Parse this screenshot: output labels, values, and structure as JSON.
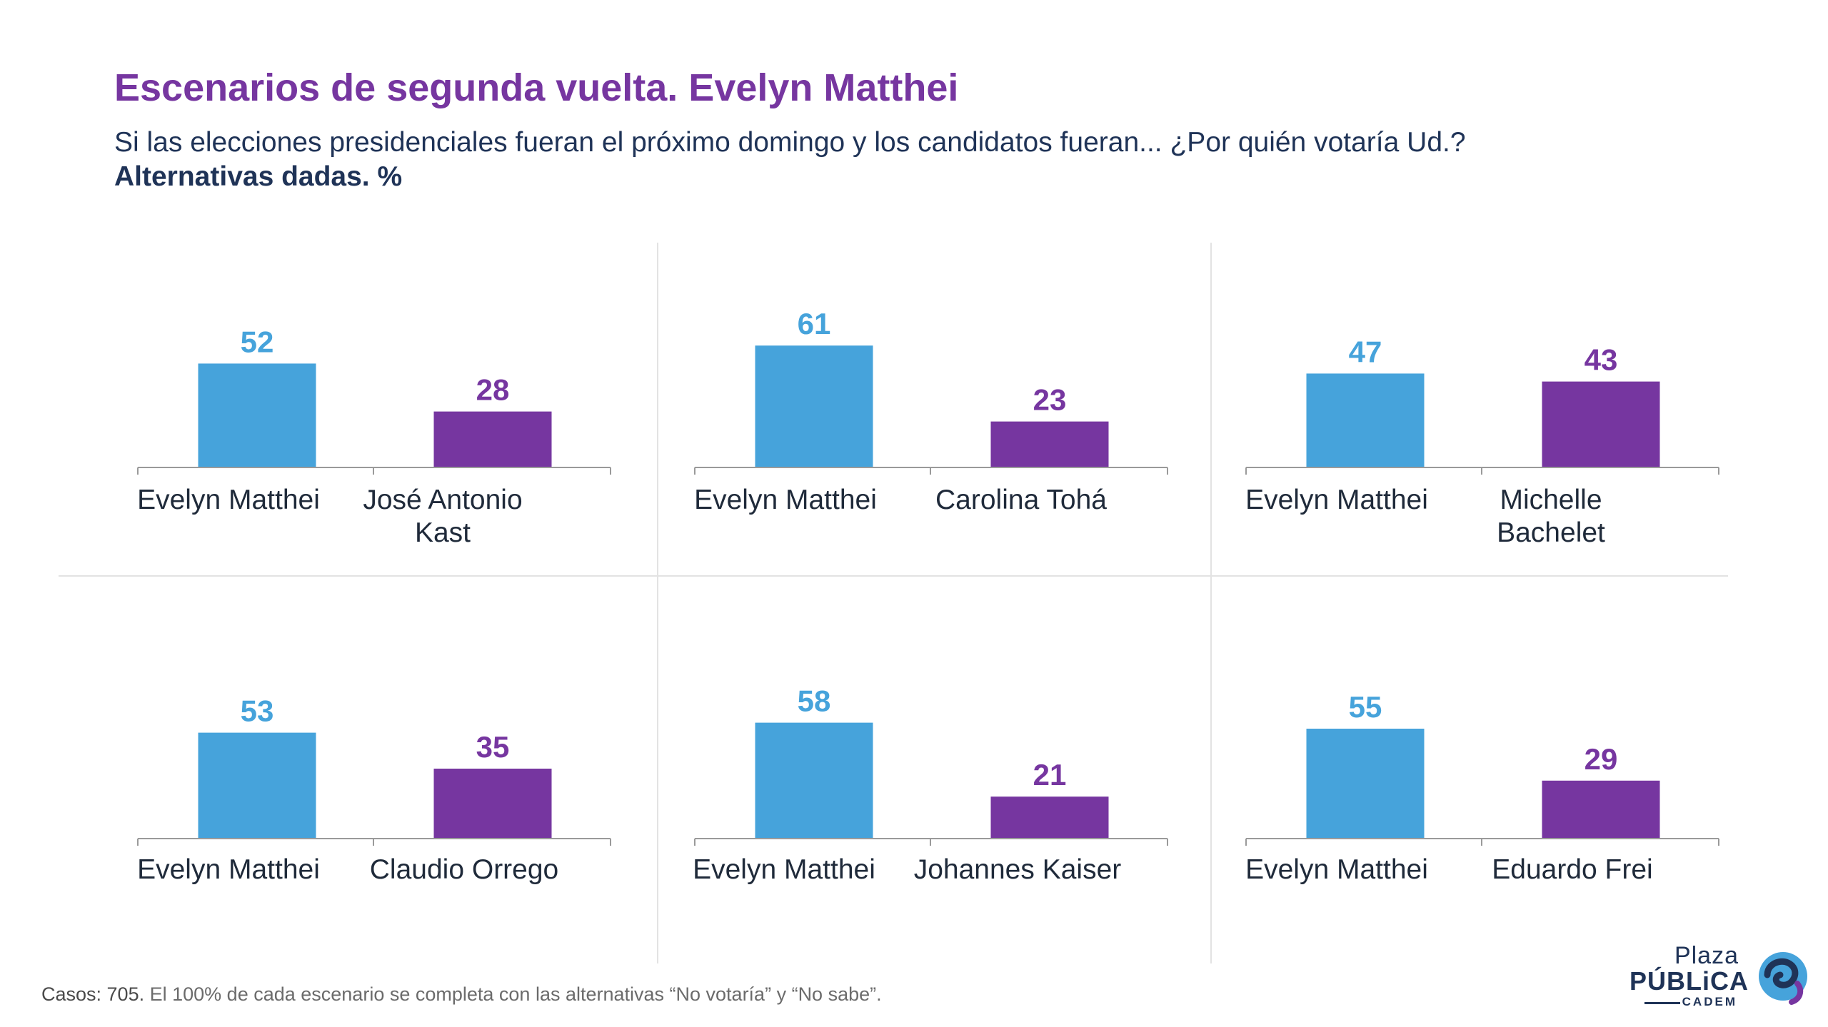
{
  "header": {
    "title": "Escenarios de segunda vuelta. Evelyn Matthei",
    "subtitle": "Si las elecciones presidenciales fueran el próximo domingo y los candidatos fueran... ¿Por quién votaría Ud.?",
    "subtitle_bold": "Alternativas dadas. %"
  },
  "colors": {
    "matthei": "#46a3db",
    "opponent": "#7636a0",
    "title": "#7636a0",
    "text": "#1f3357"
  },
  "chart_data": [
    {
      "type": "bar",
      "categories": [
        "Evelyn Matthei",
        "José Antonio Kast"
      ],
      "values": [
        52,
        28
      ]
    },
    {
      "type": "bar",
      "categories": [
        "Evelyn Matthei",
        "Carolina Tohá"
      ],
      "values": [
        61,
        23
      ]
    },
    {
      "type": "bar",
      "categories": [
        "Evelyn Matthei",
        "Michelle Bachelet"
      ],
      "values": [
        47,
        43
      ]
    },
    {
      "type": "bar",
      "categories": [
        "Evelyn Matthei",
        "Claudio Orrego"
      ],
      "values": [
        53,
        35
      ]
    },
    {
      "type": "bar",
      "categories": [
        "Evelyn Matthei",
        "Johannes Kaiser"
      ],
      "values": [
        58,
        21
      ]
    },
    {
      "type": "bar",
      "categories": [
        "Evelyn Matthei",
        "Eduardo Frei"
      ],
      "values": [
        55,
        29
      ]
    }
  ],
  "footnote": {
    "casos": "Casos: 705.",
    "text": "El 100% de cada escenario se completa con las alternativas “No votaría” y “No sabe”."
  },
  "logo": {
    "line1": "Plaza",
    "line2": "PÚBLiCA",
    "line3": "CADEM"
  }
}
